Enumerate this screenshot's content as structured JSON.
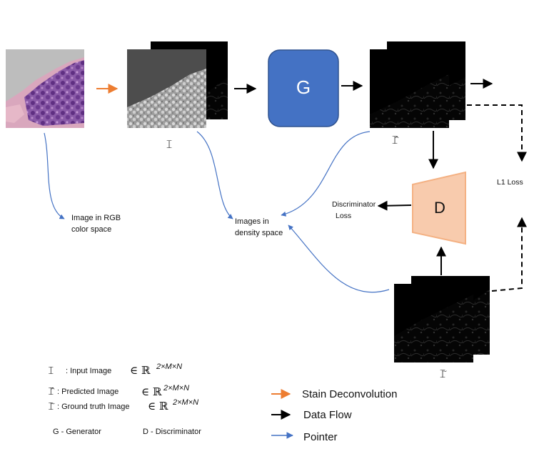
{
  "colors": {
    "stain_arrow": "#ED7D31",
    "pointer_arrow": "#4472C4",
    "generator_fill": "#4472C4",
    "discriminator_fill": "#F8CBAD",
    "discriminator_border": "#F4B183"
  },
  "nodes": {
    "rgb_image_desc": [
      "Image in RGB",
      "color space"
    ],
    "density_desc": [
      "Images in",
      "density space"
    ],
    "generator_label": "G",
    "discriminator_label": "D",
    "discriminator_loss": [
      "Discriminator",
      "Loss"
    ],
    "l1_loss": "L1 Loss",
    "input_symbol": "𝙸",
    "predicted_symbol": "𝙸̂",
    "ground_truth_symbol": "𝙸̃"
  },
  "legend": {
    "input": {
      "symbol": "𝙸",
      "label": ": Input Image",
      "space": "∈ ℝ",
      "exp": "2×M×N"
    },
    "predicted": {
      "symbol": "𝙸̂",
      "label": ": Predicted Image",
      "space": "∈ ℝ",
      "exp": "2×M×N"
    },
    "ground_truth": {
      "symbol": "𝙸̃",
      "label": ": Ground truth Image",
      "space": "∈ ℝ",
      "exp": "2×M×N"
    },
    "generator": "G - Generator",
    "discriminator": "D - Discriminator",
    "arrows": [
      "Stain Deconvolution",
      "Data Flow",
      "Pointer"
    ]
  }
}
